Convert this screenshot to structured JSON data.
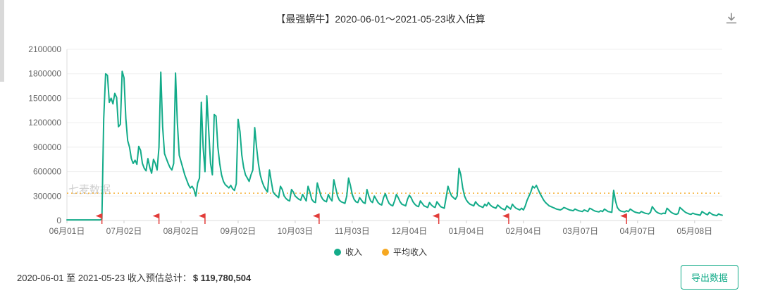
{
  "colors": {
    "accent": "#13ab89",
    "average": "#f6a821",
    "flag": "#e23c39",
    "axis_text": "#666666",
    "grid": "#efefef"
  },
  "header": {
    "title": "【最强蜗牛】2020-06-01～2021-05-23收入估算",
    "download_icon": "download-icon"
  },
  "chart_data": {
    "type": "line",
    "title": "【最强蜗牛】2020-06-01～2021-05-23收入估算",
    "watermark": "七麦数据",
    "ylim": [
      0,
      2100000
    ],
    "yticks": [
      0,
      300000,
      600000,
      900000,
      1200000,
      1500000,
      1800000,
      2100000
    ],
    "x_domain_days": [
      0,
      356
    ],
    "x_start_date": "2020-06-01",
    "x_end_date": "2021-05-23",
    "xticks": [
      {
        "label": "06月01日",
        "day": 0
      },
      {
        "label": "07月02日",
        "day": 31
      },
      {
        "label": "08月02日",
        "day": 62
      },
      {
        "label": "09月02日",
        "day": 93
      },
      {
        "label": "10月03日",
        "day": 124
      },
      {
        "label": "11月03日",
        "day": 155
      },
      {
        "label": "12月04日",
        "day": 186
      },
      {
        "label": "01月04日",
        "day": 217
      },
      {
        "label": "02月04日",
        "day": 248
      },
      {
        "label": "03月07日",
        "day": 279
      },
      {
        "label": "04月07日",
        "day": 310
      },
      {
        "label": "05月08日",
        "day": 341
      }
    ],
    "grid": "horizontal",
    "legend_position": "bottom-center",
    "series": [
      {
        "name": "收入",
        "color": "#13ab89",
        "values": [
          8000,
          8000,
          8000,
          8000,
          8000,
          8000,
          8000,
          8000,
          8000,
          8000,
          8000,
          8000,
          8000,
          8000,
          8000,
          8000,
          8000,
          8000,
          8000,
          20000,
          1250000,
          1800000,
          1780000,
          1450000,
          1500000,
          1430000,
          1560000,
          1510000,
          1150000,
          1180000,
          1830000,
          1750000,
          1250000,
          980000,
          900000,
          760000,
          700000,
          740000,
          690000,
          910000,
          860000,
          700000,
          640000,
          610000,
          760000,
          650000,
          580000,
          750000,
          700000,
          620000,
          900000,
          1820000,
          1150000,
          820000,
          760000,
          700000,
          650000,
          620000,
          700000,
          1810000,
          1200000,
          800000,
          720000,
          640000,
          560000,
          500000,
          440000,
          400000,
          420000,
          380000,
          300000,
          460000,
          520000,
          1450000,
          900000,
          600000,
          1530000,
          1100000,
          700000,
          560000,
          1300000,
          1280000,
          900000,
          700000,
          560000,
          480000,
          440000,
          420000,
          400000,
          430000,
          390000,
          370000,
          450000,
          1240000,
          1090000,
          800000,
          650000,
          560000,
          520000,
          480000,
          560000,
          620000,
          1140000,
          900000,
          700000,
          560000,
          480000,
          420000,
          380000,
          350000,
          620000,
          480000,
          350000,
          320000,
          300000,
          280000,
          420000,
          380000,
          300000,
          270000,
          250000,
          240000,
          380000,
          350000,
          300000,
          280000,
          260000,
          250000,
          320000,
          280000,
          240000,
          420000,
          350000,
          260000,
          230000,
          220000,
          460000,
          380000,
          300000,
          260000,
          240000,
          230000,
          320000,
          270000,
          240000,
          500000,
          400000,
          300000,
          250000,
          230000,
          220000,
          210000,
          300000,
          520000,
          430000,
          320000,
          260000,
          230000,
          220000,
          280000,
          250000,
          220000,
          210000,
          380000,
          300000,
          240000,
          220000,
          300000,
          260000,
          220000,
          200000,
          190000,
          280000,
          330000,
          260000,
          210000,
          190000,
          180000,
          240000,
          320000,
          280000,
          230000,
          200000,
          190000,
          180000,
          260000,
          310000,
          280000,
          230000,
          200000,
          180000,
          170000,
          240000,
          210000,
          180000,
          170000,
          160000,
          220000,
          190000,
          170000,
          160000,
          230000,
          200000,
          170000,
          160000,
          150000,
          280000,
          420000,
          350000,
          300000,
          280000,
          260000,
          300000,
          640000,
          560000,
          400000,
          300000,
          250000,
          220000,
          200000,
          190000,
          180000,
          230000,
          200000,
          180000,
          170000,
          160000,
          200000,
          180000,
          220000,
          190000,
          170000,
          160000,
          150000,
          190000,
          170000,
          150000,
          140000,
          130000,
          180000,
          160000,
          140000,
          200000,
          170000,
          150000,
          140000,
          130000,
          150000,
          130000,
          180000,
          250000,
          300000,
          350000,
          420000,
          400000,
          430000,
          380000,
          330000,
          290000,
          250000,
          220000,
          200000,
          180000,
          170000,
          160000,
          150000,
          140000,
          135000,
          130000,
          140000,
          160000,
          150000,
          140000,
          130000,
          125000,
          120000,
          140000,
          130000,
          120000,
          115000,
          110000,
          130000,
          120000,
          110000,
          150000,
          140000,
          125000,
          115000,
          110000,
          105000,
          120000,
          110000,
          140000,
          125000,
          110000,
          105000,
          100000,
          370000,
          240000,
          160000,
          130000,
          115000,
          110000,
          105000,
          120000,
          110000,
          140000,
          125000,
          110000,
          100000,
          95000,
          90000,
          110000,
          100000,
          90000,
          85000,
          80000,
          100000,
          170000,
          140000,
          110000,
          95000,
          85000,
          80000,
          90000,
          85000,
          150000,
          130000,
          105000,
          90000,
          80000,
          75000,
          85000,
          160000,
          140000,
          120000,
          100000,
          90000,
          80000,
          75000,
          90000,
          80000,
          75000,
          70000,
          65000,
          110000,
          95000,
          80000,
          70000,
          100000,
          85000,
          70000,
          65000,
          60000,
          80000,
          70000,
          65000
        ]
      },
      {
        "name": "平均收入",
        "color": "#f6a821",
        "style": "dotted",
        "value": 335520
      }
    ],
    "flags": {
      "color": "#e23c39",
      "days": [
        19,
        50,
        75,
        137,
        202,
        240,
        304
      ]
    },
    "legend": [
      "收入",
      "平均收入"
    ]
  },
  "footer": {
    "summary_prefix": "2020-06-01 至 2021-05-23 收入预估总计：",
    "summary_value": "$ 119,780,504",
    "export_label": "导出数据"
  }
}
